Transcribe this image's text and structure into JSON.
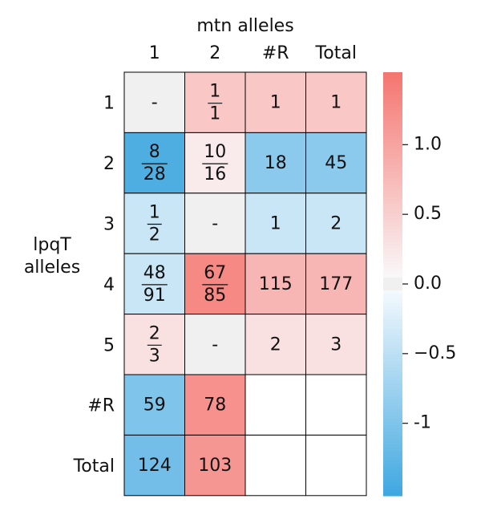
{
  "chart_data": {
    "type": "heatmap",
    "title": "mtn alleles",
    "ylabel": "lpqT alleles",
    "columns": [
      "1",
      "2",
      "#R",
      "Total"
    ],
    "rows": [
      "1",
      "2",
      "3",
      "4",
      "5",
      "#R",
      "Total"
    ],
    "cells": [
      [
        {
          "value": 0,
          "label": "-"
        },
        {
          "value": 0.6,
          "numerator": "1",
          "denominator": "1"
        },
        {
          "value": 0.6,
          "label": "1"
        },
        {
          "value": 0.6,
          "label": "1"
        }
      ],
      [
        {
          "value": -1.4,
          "numerator": "8",
          "denominator": "28"
        },
        {
          "value": 0.2,
          "numerator": "10",
          "denominator": "16"
        },
        {
          "value": -0.9,
          "label": "18"
        },
        {
          "value": -0.9,
          "label": "45"
        }
      ],
      [
        {
          "value": -0.4,
          "numerator": "1",
          "denominator": "2"
        },
        {
          "value": 0,
          "label": "-"
        },
        {
          "value": -0.4,
          "label": "1"
        },
        {
          "value": -0.4,
          "label": "2"
        }
      ],
      [
        {
          "value": -0.4,
          "numerator": "48",
          "denominator": "91"
        },
        {
          "value": 1.3,
          "numerator": "67",
          "denominator": "85"
        },
        {
          "value": 0.8,
          "label": "115"
        },
        {
          "value": 0.8,
          "label": "177"
        }
      ],
      [
        {
          "value": 0.3,
          "numerator": "2",
          "denominator": "3"
        },
        {
          "value": 0,
          "label": "-"
        },
        {
          "value": 0.3,
          "label": "2"
        },
        {
          "value": 0.3,
          "label": "3"
        }
      ],
      [
        {
          "value": -1.0,
          "label": "59"
        },
        {
          "value": 1.2,
          "label": "78"
        },
        {
          "value": null
        },
        {
          "value": null
        }
      ],
      [
        {
          "value": -1.1,
          "label": "124"
        },
        {
          "value": 1.15,
          "label": "103"
        },
        {
          "value": null
        },
        {
          "value": null
        }
      ]
    ],
    "clim": [
      -1.52,
      1.52
    ],
    "cticks": [
      -1.0,
      {
        "value": -0.5,
        "label": "−0.5"
      },
      {
        "value": 0.0,
        "label": "0.0"
      },
      0.5,
      {
        "value": 1.0,
        "label": "1.0"
      }
    ],
    "negative_color": "#3fa7e0",
    "zero_color": "#f0f0f0",
    "positive_color": "#f5756f"
  }
}
